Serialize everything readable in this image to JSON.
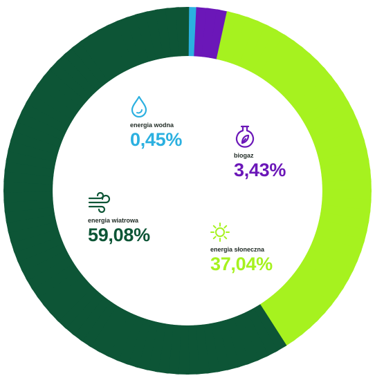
{
  "chart_data": {
    "type": "pie",
    "variant": "segmented-ring",
    "start": "top",
    "direction": "clockwise",
    "categories": [
      "energia wodna",
      "biogaz",
      "energia słoneczna",
      "energia wiatrowa"
    ],
    "values": [
      0.45,
      3.43,
      37.04,
      59.08
    ],
    "value_labels": [
      "0,45%",
      "3,43%",
      "37,04%",
      "59,08%"
    ],
    "icons": [
      "water-drop-icon",
      "biogas-flask-icon",
      "sun-icon",
      "wind-icon"
    ],
    "colors": [
      "#2bb0e0",
      "#6b17b8",
      "#a6f21f",
      "#0d5536"
    ],
    "title": "",
    "legend": "none"
  }
}
